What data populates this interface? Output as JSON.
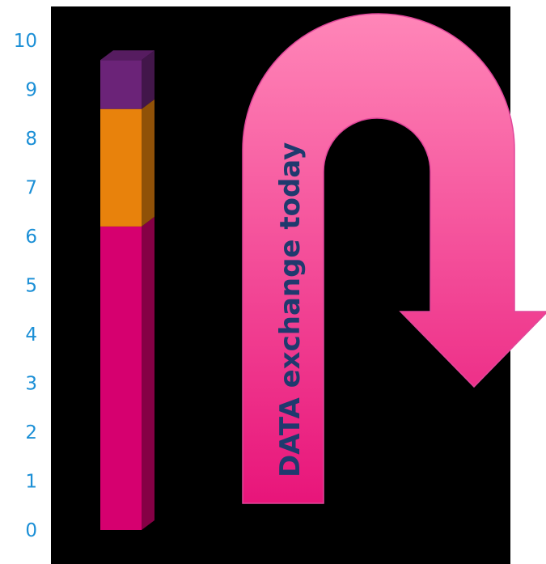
{
  "chart_data": {
    "type": "bar",
    "stacked": true,
    "three_d": true,
    "categories": [
      ""
    ],
    "series": [
      {
        "values": [
          6.2
        ],
        "color": "#d6006f"
      },
      {
        "values": [
          2.4
        ],
        "color": "#e8820c"
      },
      {
        "values": [
          1.0
        ],
        "color": "#6b2378"
      }
    ],
    "ylim": [
      0,
      10
    ],
    "yticks": [
      "0",
      "1",
      "2",
      "3",
      "4",
      "5",
      "6",
      "7",
      "8",
      "9",
      "10"
    ],
    "grid": false,
    "legend": "none"
  },
  "annotation": {
    "arrow_text": "DATA exchange today",
    "arrow_color_top": "#ff86b8",
    "arrow_color_bottom": "#e8157a"
  },
  "colors": {
    "plot_background": "#000000",
    "tick_label": "#1b8fd6"
  }
}
